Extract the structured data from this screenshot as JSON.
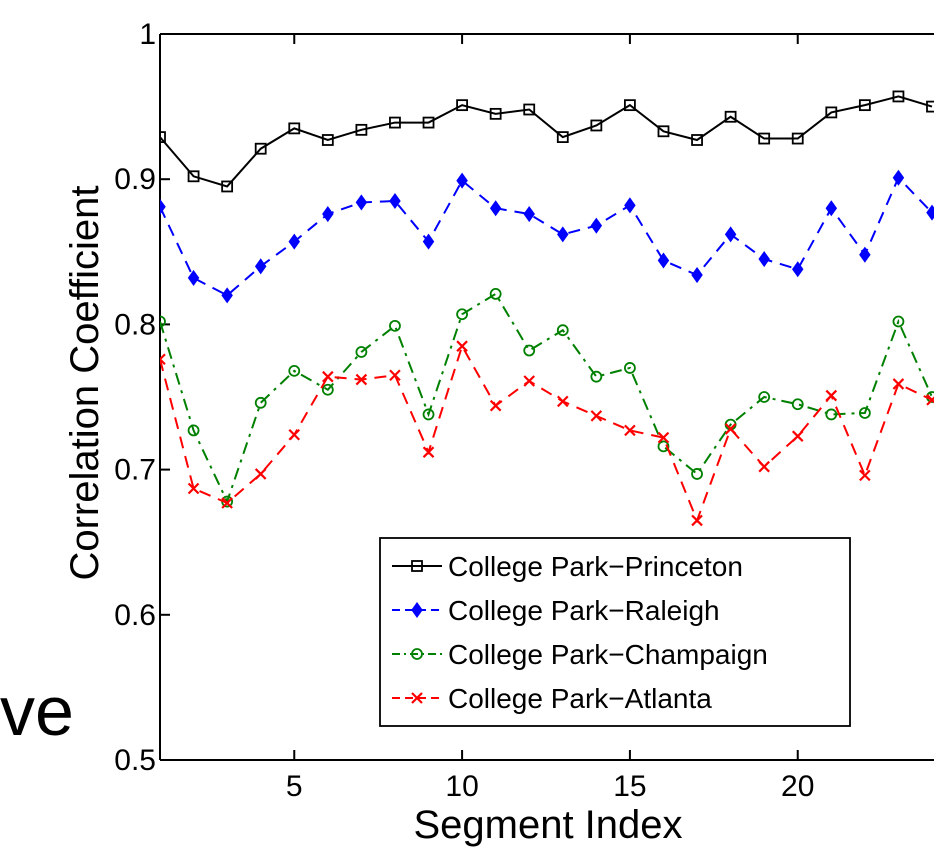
{
  "side_fragment": "ve",
  "chart_data": {
    "type": "line",
    "title": "",
    "xlabel": "Segment Index",
    "ylabel": "Correlation Coefficient",
    "xlim": [
      1,
      24
    ],
    "ylim": [
      0.5,
      1
    ],
    "xticks": [
      5,
      10,
      15,
      20
    ],
    "yticks": [
      0.5,
      0.6,
      0.7,
      0.8,
      0.9,
      1
    ],
    "ytick_labels": [
      "0.5",
      "0.6",
      "0.7",
      "0.8",
      "0.9",
      "1"
    ],
    "grid": false,
    "legend_position": "bottom-right",
    "x": [
      1,
      2,
      3,
      4,
      5,
      6,
      7,
      8,
      9,
      10,
      11,
      12,
      13,
      14,
      15,
      16,
      17,
      18,
      19,
      20,
      21,
      22,
      23,
      24
    ],
    "series": [
      {
        "name": "College Park−Princeton",
        "color": "#000000",
        "marker": "square",
        "line": "solid",
        "values": [
          0.929,
          0.902,
          0.895,
          0.921,
          0.935,
          0.927,
          0.934,
          0.939,
          0.939,
          0.951,
          0.945,
          0.948,
          0.929,
          0.937,
          0.951,
          0.933,
          0.927,
          0.943,
          0.928,
          0.928,
          0.946,
          0.951,
          0.957,
          0.95
        ]
      },
      {
        "name": "College Park−Raleigh",
        "color": "#0000ff",
        "marker": "diamond",
        "line": "dashed",
        "values": [
          0.881,
          0.832,
          0.82,
          0.84,
          0.857,
          0.876,
          0.884,
          0.885,
          0.857,
          0.899,
          0.88,
          0.876,
          0.862,
          0.868,
          0.882,
          0.844,
          0.834,
          0.862,
          0.845,
          0.838,
          0.88,
          0.848,
          0.901,
          0.877
        ]
      },
      {
        "name": "College Park−Champaign",
        "color": "#008000",
        "marker": "circle",
        "line": "dashdot",
        "values": [
          0.802,
          0.727,
          0.678,
          0.746,
          0.768,
          0.755,
          0.781,
          0.799,
          0.738,
          0.807,
          0.821,
          0.782,
          0.796,
          0.764,
          0.77,
          0.716,
          0.697,
          0.731,
          0.75,
          0.745,
          0.738,
          0.739,
          0.802,
          0.75
        ]
      },
      {
        "name": "College Park−Atlanta",
        "color": "#ff0000",
        "marker": "x",
        "line": "dashed",
        "values": [
          0.776,
          0.687,
          0.677,
          0.697,
          0.724,
          0.764,
          0.762,
          0.765,
          0.712,
          0.785,
          0.744,
          0.761,
          0.747,
          0.737,
          0.727,
          0.722,
          0.665,
          0.728,
          0.702,
          0.723,
          0.751,
          0.696,
          0.759,
          0.748
        ]
      }
    ]
  }
}
